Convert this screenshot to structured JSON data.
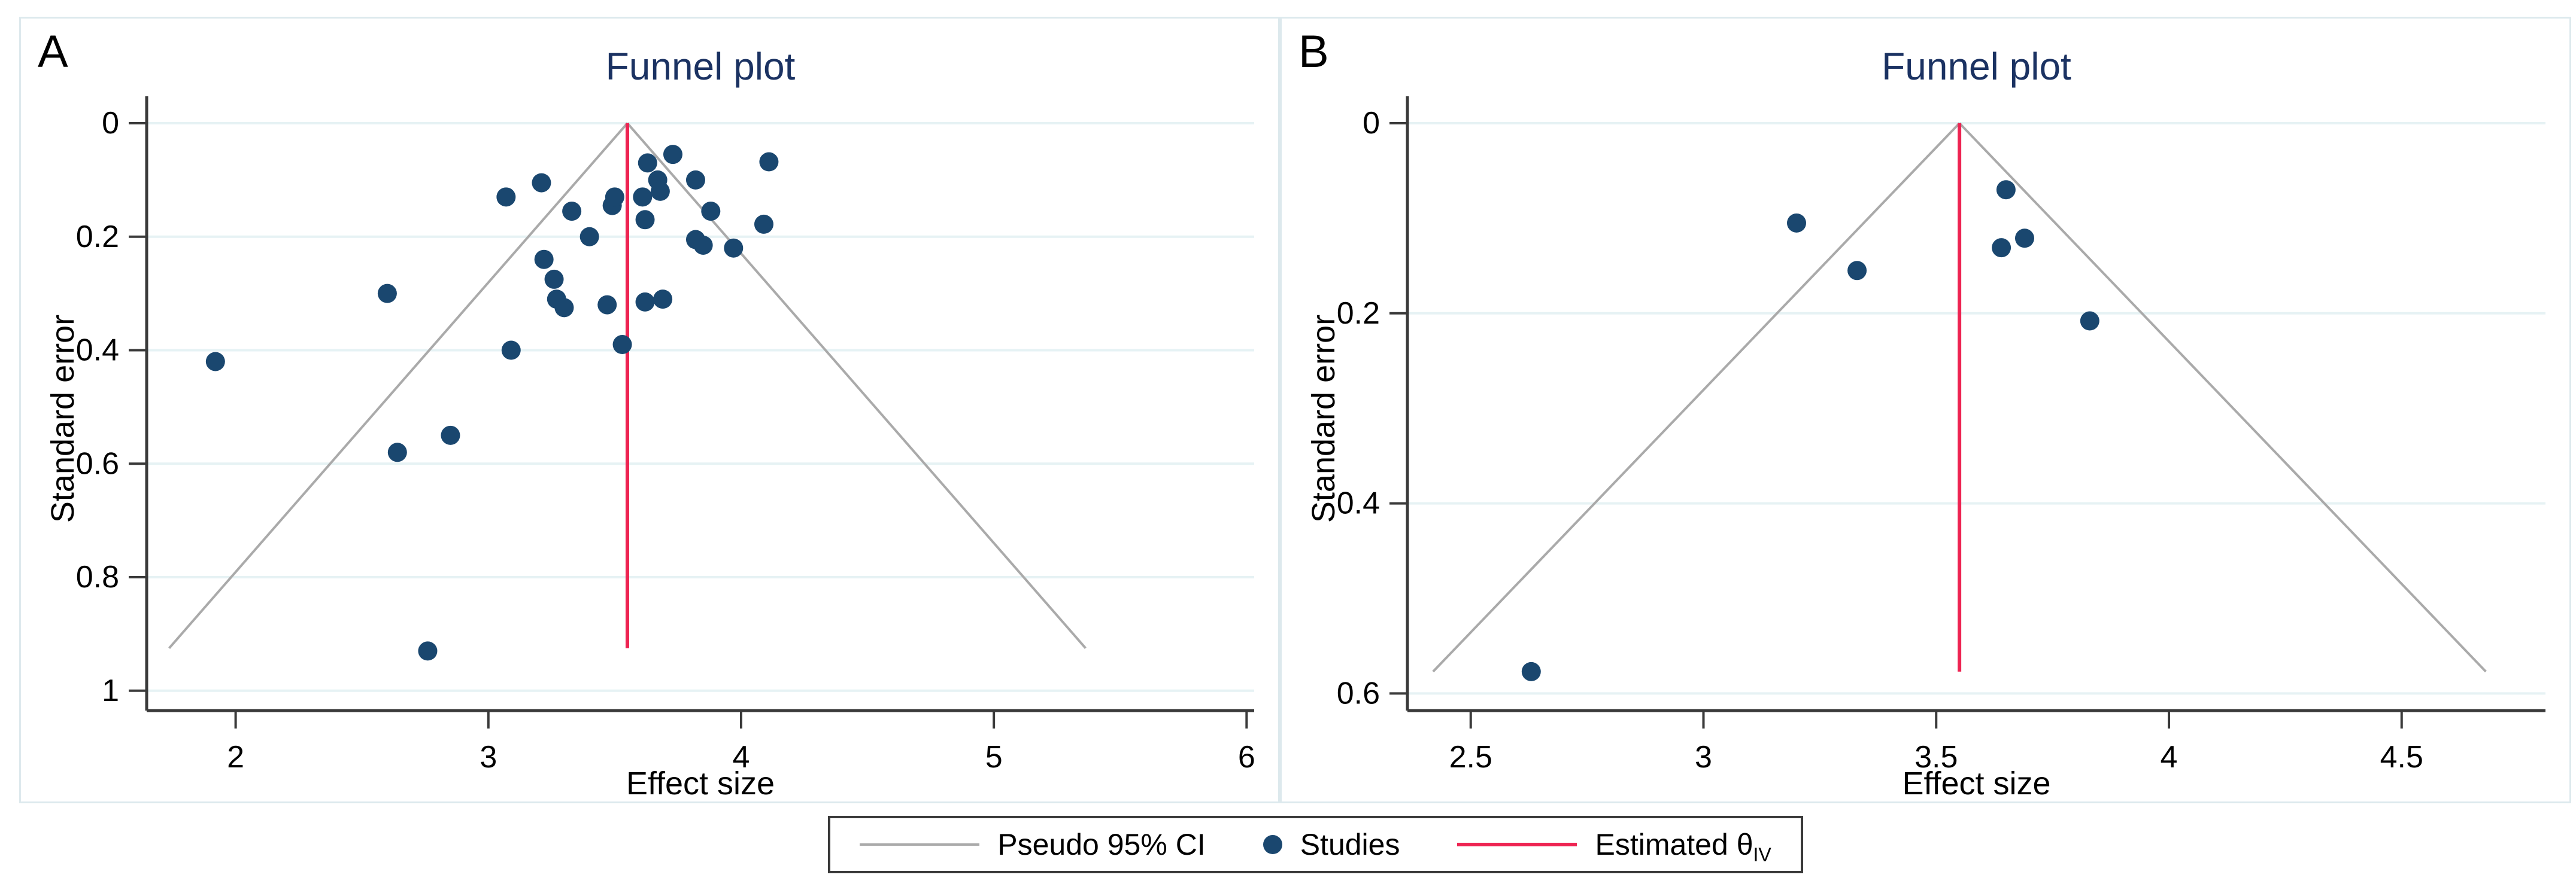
{
  "figure_title": "Funnel plot (panels A and B)",
  "colors": {
    "studies_dot": "#1a476f",
    "pseudo_ci_line": "#aaaaaa",
    "estimate_line": "#ee2452",
    "gridline": "#e6f2f4",
    "axis": "#3a3a3a",
    "title_text": "#1b3262",
    "tick_text": "#000000",
    "panel_border": "#dde9ed",
    "background": "#ffffff"
  },
  "chart_data": [
    {
      "type": "scatter",
      "variant": "funnel-plot",
      "panel_label": "A",
      "title": "Funnel plot",
      "xlabel": "Effect size",
      "ylabel": "Standard error",
      "xlim": [
        1.648,
        6.03
      ],
      "ylim": [
        0,
        1.035
      ],
      "y_inverted": true,
      "grid": "horizontal",
      "legend_position": "bottom-center",
      "x_ticks": [
        {
          "v": 2,
          "label": "2"
        },
        {
          "v": 3,
          "label": "3"
        },
        {
          "v": 4,
          "label": "4"
        },
        {
          "v": 5,
          "label": "5"
        },
        {
          "v": 6,
          "label": "6"
        }
      ],
      "y_ticks": [
        {
          "v": 0,
          "label": "0"
        },
        {
          "v": 0.2,
          "label": "0.2"
        },
        {
          "v": 0.4,
          "label": "0.4"
        },
        {
          "v": 0.6,
          "label": "0.6"
        },
        {
          "v": 0.8,
          "label": "0.8"
        },
        {
          "v": 1,
          "label": "1"
        }
      ],
      "estimate_theta_iv": 3.55,
      "pseudo_ci_multiplier": 1.96,
      "funnel_depth_se": 0.925,
      "studies": [
        [
          1.92,
          0.42
        ],
        [
          2.6,
          0.3
        ],
        [
          2.64,
          0.58
        ],
        [
          2.76,
          0.93
        ],
        [
          2.85,
          0.55
        ],
        [
          3.07,
          0.13
        ],
        [
          3.09,
          0.4
        ],
        [
          3.21,
          0.105
        ],
        [
          3.22,
          0.24
        ],
        [
          3.26,
          0.275
        ],
        [
          3.27,
          0.31
        ],
        [
          3.3,
          0.325
        ],
        [
          3.33,
          0.155
        ],
        [
          3.4,
          0.2
        ],
        [
          3.47,
          0.32
        ],
        [
          3.49,
          0.145
        ],
        [
          3.5,
          0.13
        ],
        [
          3.53,
          0.39
        ],
        [
          3.61,
          0.13
        ],
        [
          3.62,
          0.17
        ],
        [
          3.62,
          0.315
        ],
        [
          3.63,
          0.07
        ],
        [
          3.67,
          0.1
        ],
        [
          3.68,
          0.12
        ],
        [
          3.69,
          0.31
        ],
        [
          3.73,
          0.055
        ],
        [
          3.82,
          0.1
        ],
        [
          3.82,
          0.205
        ],
        [
          3.85,
          0.215
        ],
        [
          3.88,
          0.155
        ],
        [
          3.97,
          0.22
        ],
        [
          4.09,
          0.178
        ],
        [
          4.11,
          0.068
        ]
      ]
    },
    {
      "type": "scatter",
      "variant": "funnel-plot",
      "panel_label": "B",
      "title": "Funnel plot",
      "xlabel": "Effect size",
      "ylabel": "Standard error",
      "xlim": [
        2.364,
        4.809
      ],
      "ylim": [
        0,
        0.618
      ],
      "y_inverted": true,
      "grid": "horizontal",
      "legend_position": "bottom-center",
      "x_ticks": [
        {
          "v": 2.5,
          "label": "2.5"
        },
        {
          "v": 3,
          "label": "3"
        },
        {
          "v": 3.5,
          "label": "3.5"
        },
        {
          "v": 4,
          "label": "4"
        },
        {
          "v": 4.5,
          "label": "4.5"
        }
      ],
      "y_ticks": [
        {
          "v": 0,
          "label": "0"
        },
        {
          "v": 0.2,
          "label": "0.2"
        },
        {
          "v": 0.4,
          "label": "0.4"
        },
        {
          "v": 0.6,
          "label": "0.6"
        }
      ],
      "estimate_theta_iv": 3.55,
      "pseudo_ci_multiplier": 1.96,
      "funnel_depth_se": 0.577,
      "studies": [
        [
          2.63,
          0.577
        ],
        [
          3.2,
          0.105
        ],
        [
          3.33,
          0.155
        ],
        [
          3.65,
          0.07
        ],
        [
          3.64,
          0.131
        ],
        [
          3.69,
          0.121
        ],
        [
          3.83,
          0.208
        ]
      ]
    }
  ],
  "legend": {
    "items": [
      {
        "swatch": "line",
        "color": "#aaaaaa",
        "thickness": 4,
        "label": "Pseudo 95% CI"
      },
      {
        "swatch": "dot",
        "color": "#1a476f",
        "label": "Studies"
      },
      {
        "swatch": "line",
        "color": "#ee2452",
        "thickness": 6,
        "label": "Estimated θ",
        "label_sub": "IV"
      }
    ]
  }
}
